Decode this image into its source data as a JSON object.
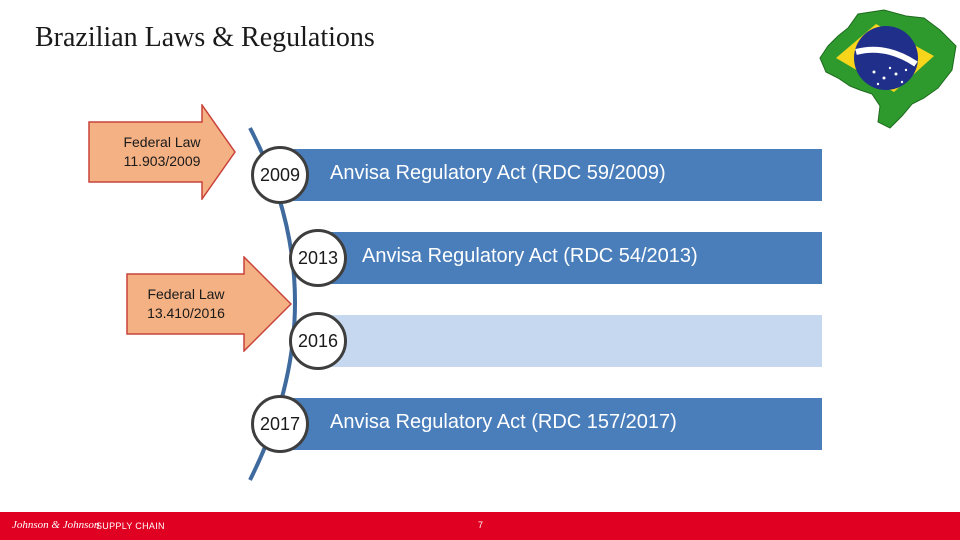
{
  "slide": {
    "title": "Brazilian Laws & Regulations",
    "page_number": "7"
  },
  "arrows": [
    {
      "label_line1": "Federal Law",
      "label_line2": "11.903/2009"
    },
    {
      "label_line1": "Federal Law",
      "label_line2": "13.410/2016"
    }
  ],
  "timeline": [
    {
      "year": "2009",
      "text": "Anvisa Regulatory Act (RDC 59/2009)"
    },
    {
      "year": "2013",
      "text": "Anvisa Regulatory Act (RDC 54/2013)"
    },
    {
      "year": "2016",
      "text": ""
    },
    {
      "year": "2017",
      "text": "Anvisa Regulatory Act (RDC 157/2017)"
    }
  ],
  "footer": {
    "logo_text": "Johnson & Johnson",
    "sub_text": "SUPPLY CHAIN"
  },
  "colors": {
    "bar_dark": "#4a7ebb",
    "bar_light": "#c5d8ef",
    "arrow_fill": "#f4b183",
    "arrow_stroke": "#c8423a",
    "footer_red": "#e00022",
    "flag_green": "#2e9a2e",
    "flag_yellow": "#f6d51b",
    "flag_blue": "#1f2f8a"
  }
}
